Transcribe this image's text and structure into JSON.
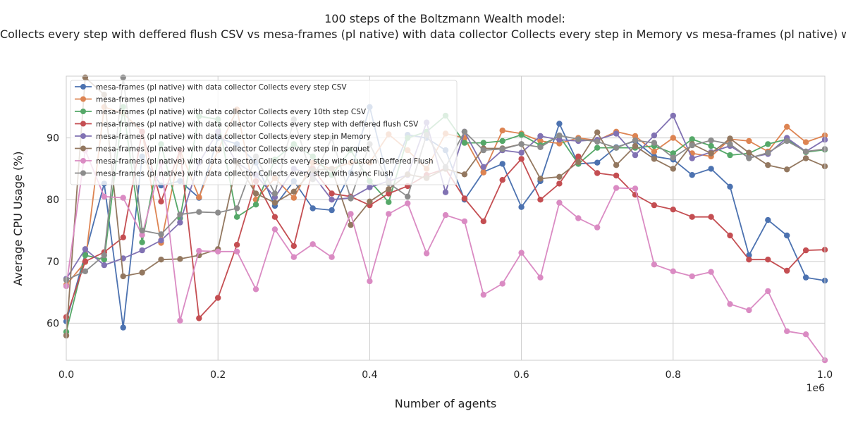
{
  "chart_data": {
    "type": "line",
    "title": "100 steps of the Boltzmann Wealth model:",
    "subtitle": "mesa-frames (pl native) with data collector Collects every step CSV vs mesa-frames (pl native) vs mesa-frames (pl native) with data collector Collects every 10th step CSV vs mesa-frames (pl native) with data collector Collects every step with deffered flush CSV vs mesa-frames (pl native) with data collector Collects every step in Memory vs mesa-frames (pl native) with data collector Collects every step in parquet vs mesa-frames (pl native) with data collector Collects every step with custom Deffered Flush vs mesa-frames (pl native) with data collector Collects every step with async Flush",
    "xlabel": "Number of agents",
    "ylabel": "Average CPU Usage (%)",
    "x_offset_text": "1e6",
    "xlim": [
      0,
      1
    ],
    "ylim": [
      54,
      100
    ],
    "x_ticks": [
      "0.0",
      "0.2",
      "0.4",
      "0.6",
      "0.8",
      "1.0"
    ],
    "y_ticks": [
      "60",
      "70",
      "80",
      "90"
    ],
    "grid": true,
    "legend_position": "upper-left",
    "x": [
      0,
      0.025,
      0.05,
      0.075,
      0.1,
      0.125,
      0.15,
      0.175,
      0.2,
      0.225,
      0.25,
      0.275,
      0.3,
      0.325,
      0.35,
      0.375,
      0.4,
      0.425,
      0.45,
      0.475,
      0.5,
      0.525,
      0.55,
      0.575,
      0.6,
      0.625,
      0.65,
      0.675,
      0.7,
      0.725,
      0.75,
      0.775,
      0.8,
      0.825,
      0.85,
      0.875,
      0.9,
      0.925,
      0.95,
      0.975,
      1.0
    ],
    "series": [
      {
        "name": "mesa-frames (pl native) with data collector Collects every step CSV",
        "color": "#4c72b0",
        "values": [
          60.3,
          71.2,
          82.6,
          59.3,
          87.0,
          82.3,
          83.0,
          80.3,
          90.0,
          89.0,
          86.0,
          79.0,
          83.0,
          78.6,
          78.3,
          84.4,
          95.0,
          82.7,
          90.5,
          90.0,
          88.0,
          80.0,
          84.5,
          85.8,
          78.8,
          83.0,
          92.3,
          85.8,
          86.0,
          88.5,
          89.5,
          87.0,
          86.5,
          84.0,
          85.0,
          82.1,
          71.0,
          76.7,
          74.2,
          67.4,
          66.9
        ]
      },
      {
        "name": "mesa-frames (pl native)",
        "color": "#dd8452",
        "values": [
          66.2,
          69.9,
          95.0,
          94.0,
          91.0,
          73.0,
          88.0,
          80.4,
          88.0,
          94.6,
          80.0,
          83.5,
          80.3,
          86.0,
          85.0,
          86.0,
          86.0,
          90.6,
          88.0,
          85.0,
          90.7,
          90.0,
          84.4,
          91.2,
          90.7,
          89.5,
          89.1,
          90.0,
          89.6,
          91.0,
          90.3,
          87.8,
          90.0,
          87.5,
          87.0,
          89.8,
          89.5,
          87.8,
          91.8,
          89.3,
          90.4
        ]
      },
      {
        "name": "mesa-frames (pl native) with data collector Collects every 10th step CSV",
        "color": "#55a868",
        "values": [
          58.6,
          71.0,
          70.3,
          95.0,
          73.1,
          89.0,
          77.0,
          93.5,
          93.0,
          77.2,
          79.2,
          86.5,
          89.0,
          87.0,
          84.0,
          88.0,
          83.0,
          79.6,
          90.0,
          91.0,
          93.6,
          89.2,
          89.2,
          89.5,
          90.5,
          88.8,
          90.3,
          85.8,
          88.4,
          88.4,
          88.4,
          88.7,
          87.5,
          89.8,
          88.7,
          87.2,
          87.5,
          89.0,
          89.8,
          87.7,
          88.1
        ]
      },
      {
        "name": "mesa-frames (pl native) with data collector Collects every step with deffered flush CSV",
        "color": "#c44e52",
        "values": [
          61.0,
          70.0,
          71.5,
          73.9,
          91.0,
          79.7,
          88.0,
          60.8,
          64.1,
          72.7,
          83.0,
          77.2,
          72.5,
          85.0,
          81.0,
          80.5,
          79.1,
          81.0,
          82.2,
          84.0,
          85.0,
          80.2,
          76.5,
          83.2,
          86.6,
          80.0,
          82.6,
          87.0,
          84.3,
          83.9,
          80.8,
          79.1,
          78.4,
          77.2,
          77.2,
          74.2,
          70.3,
          70.3,
          68.5,
          71.8,
          71.9
        ]
      },
      {
        "name": "mesa-frames (pl native) with data collector Collects every step in Memory",
        "color": "#8172b3",
        "values": [
          67.2,
          72.0,
          69.4,
          70.5,
          71.8,
          73.4,
          76.3,
          86.0,
          91.0,
          86.0,
          84.0,
          80.4,
          85.0,
          84.0,
          80.0,
          80.3,
          82.0,
          83.0,
          84.0,
          92.5,
          81.2,
          91.0,
          85.3,
          88.0,
          87.6,
          90.3,
          89.7,
          89.5,
          89.7,
          90.7,
          87.2,
          90.4,
          93.6,
          86.7,
          87.7,
          88.7,
          86.8,
          87.4,
          90.0,
          87.8,
          89.7
        ]
      },
      {
        "name": "mesa-frames (pl native) with data collector Collects every step in parquet",
        "color": "#937860",
        "values": [
          58.0,
          99.8,
          97.0,
          67.6,
          68.2,
          70.3,
          70.4,
          71.0,
          72.0,
          86.0,
          81.0,
          79.5,
          81.3,
          84.8,
          85.0,
          75.9,
          79.7,
          81.7,
          84.1,
          83.5,
          85.0,
          84.1,
          88.3,
          88.3,
          89.0,
          83.4,
          83.7,
          86.1,
          90.9,
          85.6,
          88.7,
          86.6,
          85.0,
          89.0,
          87.5,
          89.9,
          87.6,
          85.6,
          84.9,
          86.7,
          85.4
        ]
      },
      {
        "name": "mesa-frames (pl native) with data collector Collects every step with custom Deffered Flush",
        "color": "#da8bc3",
        "values": [
          66.0,
          88.0,
          80.5,
          80.3,
          74.3,
          86.0,
          60.4,
          71.7,
          71.6,
          71.6,
          65.5,
          75.2,
          70.7,
          72.8,
          70.7,
          77.7,
          66.8,
          77.7,
          79.4,
          71.3,
          77.5,
          76.5,
          64.6,
          66.4,
          71.4,
          67.4,
          79.5,
          77.0,
          75.5,
          81.9,
          81.8,
          69.5,
          68.4,
          67.6,
          68.3,
          63.1,
          62.1,
          65.2,
          58.7,
          58.2,
          54.0
        ]
      },
      {
        "name": "mesa-frames (pl native) with data collector Collects every step with async Flush",
        "color": "#8c8c8c",
        "values": [
          67.0,
          68.4,
          71.0,
          99.8,
          75.0,
          74.4,
          77.6,
          78.0,
          77.9,
          78.6,
          87.0,
          81.0,
          93.0,
          83.3,
          90.0,
          80.2,
          89.0,
          82.7,
          80.5,
          90.5,
          85.3,
          91.0,
          88.0,
          88.2,
          89.0,
          88.5,
          90.4,
          89.8,
          89.4,
          88.4,
          89.6,
          89.2,
          86.8,
          88.8,
          89.6,
          89.0,
          86.7,
          87.6,
          89.5,
          87.8,
          88.2
        ]
      }
    ]
  }
}
